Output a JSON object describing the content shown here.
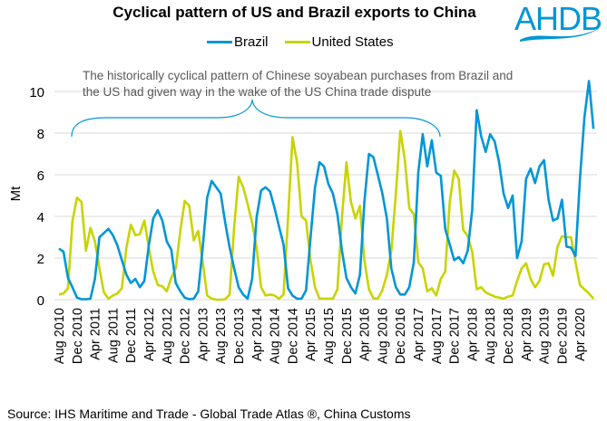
{
  "logo_text": "AHDB",
  "chart_data": {
    "type": "line",
    "title": "Cyclical pattern of US and Brazil exports to China",
    "ylabel": "Mt",
    "xlabel": "",
    "ylim": [
      0,
      10
    ],
    "yticks": [
      0,
      2,
      4,
      6,
      8,
      10
    ],
    "grid": true,
    "legend_position": "top-center",
    "x_start": "Aug 2010",
    "x_end": "Jul 2020",
    "x_frequency": "monthly",
    "x_tick_labels": [
      "Aug 2010",
      "Dec 2010",
      "Apr 2011",
      "Aug 2011",
      "Dec 2011",
      "Apr 2012",
      "Aug 2012",
      "Dec 2012",
      "Apr 2013",
      "Aug 2013",
      "Dec 2013",
      "Apr 2014",
      "Aug 2014",
      "Dec 2014",
      "Apr 2015",
      "Aug 2015",
      "Dec 2015",
      "Apr 2016",
      "Aug 2016",
      "Dec 2016",
      "Apr 2017",
      "Aug 2017",
      "Dec 2017",
      "Apr 2018",
      "Aug 2018",
      "Dec 2018",
      "Apr 2019",
      "Aug 2019",
      "Dec 2019",
      "Apr 2020"
    ],
    "series": [
      {
        "name": "Brazil",
        "color": "#0096d6",
        "values": [
          2.45,
          2.3,
          1.05,
          0.6,
          0.1,
          0.02,
          0.02,
          0.05,
          1.0,
          3.0,
          3.2,
          3.4,
          3.1,
          2.6,
          1.9,
          1.2,
          0.8,
          1.0,
          0.6,
          0.9,
          2.6,
          3.9,
          4.3,
          3.8,
          2.8,
          2.4,
          0.8,
          0.4,
          0.1,
          0.02,
          0.05,
          0.4,
          2.5,
          4.9,
          5.7,
          5.4,
          5.1,
          3.7,
          2.5,
          1.5,
          0.6,
          0.25,
          0.05,
          1.0,
          3.95,
          5.25,
          5.4,
          5.2,
          4.4,
          3.5,
          2.65,
          0.55,
          0.2,
          0.05,
          0.05,
          0.45,
          2.95,
          5.4,
          6.6,
          6.4,
          5.55,
          5.1,
          4.1,
          2.35,
          1.05,
          0.6,
          0.3,
          1.2,
          4.7,
          7.0,
          6.85,
          6.0,
          5.1,
          3.9,
          1.5,
          0.6,
          0.25,
          0.25,
          0.6,
          1.8,
          6.1,
          7.95,
          6.4,
          7.65,
          6.1,
          5.95,
          3.4,
          2.65,
          1.9,
          2.05,
          1.75,
          2.35,
          4.3,
          9.1,
          7.85,
          7.1,
          7.95,
          7.6,
          6.6,
          5.1,
          4.4,
          5.0,
          2.0,
          2.8,
          5.8,
          6.3,
          5.6,
          6.4,
          6.7,
          4.8,
          3.8,
          3.9,
          4.8,
          2.55,
          2.5,
          2.1,
          5.8,
          8.75,
          10.5,
          8.2
        ]
      },
      {
        "name": "United States",
        "color": "#c8d400",
        "values": [
          0.25,
          0.3,
          0.55,
          3.75,
          4.9,
          4.7,
          2.35,
          3.45,
          2.8,
          1.5,
          0.35,
          0.05,
          0.2,
          0.3,
          0.55,
          2.5,
          3.6,
          3.1,
          3.15,
          3.8,
          2.5,
          1.35,
          0.7,
          0.65,
          0.4,
          1.05,
          1.5,
          3.3,
          4.75,
          4.5,
          2.85,
          3.3,
          1.8,
          0.2,
          0.05,
          0.0,
          0.0,
          0.02,
          0.25,
          3.5,
          5.9,
          5.4,
          4.6,
          3.7,
          2.5,
          0.6,
          0.2,
          0.25,
          0.2,
          0.05,
          0.25,
          3.95,
          7.8,
          6.6,
          4.0,
          3.8,
          1.9,
          0.6,
          0.05,
          0.05,
          0.05,
          0.05,
          0.5,
          3.95,
          6.6,
          4.7,
          3.9,
          4.5,
          1.9,
          0.5,
          0.07,
          0.05,
          0.45,
          1.2,
          2.35,
          5.1,
          8.1,
          6.7,
          4.4,
          4.1,
          1.8,
          1.5,
          0.4,
          0.55,
          0.2,
          1.0,
          1.35,
          4.7,
          6.2,
          5.8,
          3.35,
          3.05,
          2.3,
          0.5,
          0.6,
          0.35,
          0.25,
          0.15,
          0.1,
          0.05,
          0.15,
          0.2,
          0.9,
          1.5,
          1.75,
          1.0,
          0.6,
          0.9,
          1.7,
          1.75,
          1.15,
          2.55,
          3.05,
          3.0,
          3.0,
          1.8,
          0.7,
          0.5,
          0.3,
          0.05
        ]
      }
    ],
    "annotation": {
      "line1": "The historically cyclical pattern of Chinese soyabean purchases from Brazil and",
      "line2": "the US had given way in the wake of the US China trade dispute",
      "span_start": "Aug 2010",
      "span_end": "Aug 2017"
    },
    "source": "Source: IHS Maritime and Trade - Global Trade Atlas ®, China Customs"
  }
}
